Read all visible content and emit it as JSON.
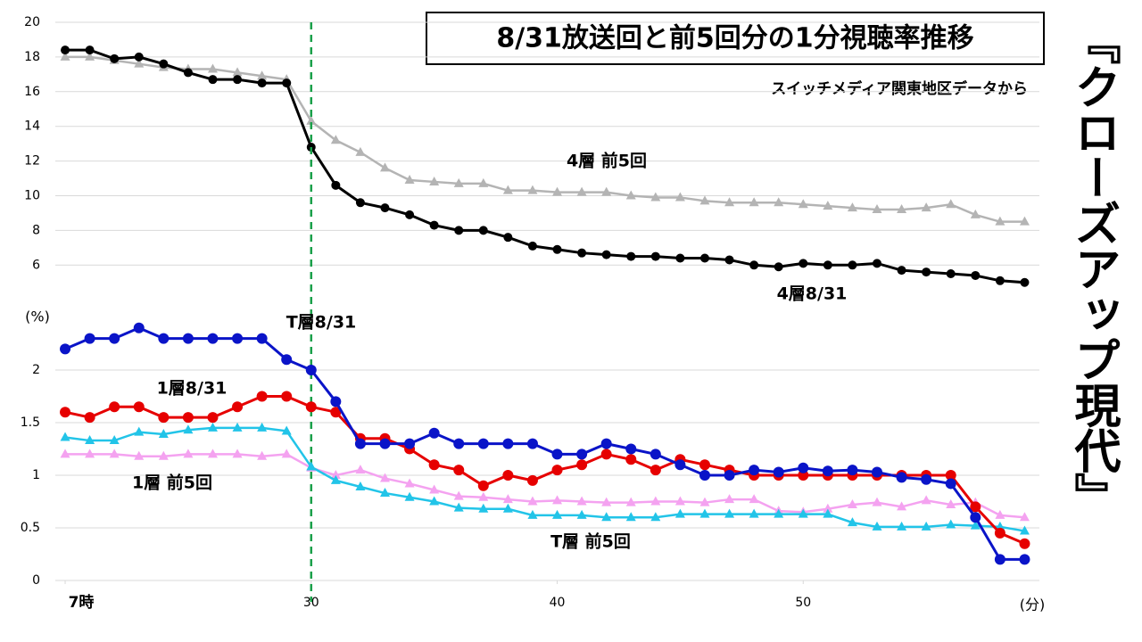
{
  "title": "8/31放送回と前5回分の1分視聴率推移",
  "subtitle": "スイッチメディア関東地区データから",
  "brand": "『クローズアップ現代』",
  "chart_data": [
    {
      "type": "line",
      "x": [
        20,
        21,
        22,
        23,
        24,
        25,
        26,
        27,
        28,
        29,
        30,
        31,
        32,
        33,
        34,
        35,
        36,
        37,
        38,
        39,
        40,
        41,
        42,
        43,
        44,
        45,
        46,
        47,
        48,
        49,
        50,
        51,
        52,
        53,
        54,
        55,
        56,
        57,
        58,
        59
      ],
      "xlim": [
        19.6,
        59.6
      ],
      "ylim": [
        5,
        20
      ],
      "yticks": [
        6,
        8,
        10,
        12,
        14,
        16,
        18,
        20
      ],
      "grid": true,
      "series": [
        {
          "name": "4層 前5回",
          "color": "#b4b4b4",
          "marker": "triangle",
          "values": [
            18.0,
            18.0,
            17.8,
            17.6,
            17.4,
            17.3,
            17.3,
            17.1,
            16.9,
            16.7,
            14.3,
            13.2,
            12.5,
            11.6,
            10.9,
            10.8,
            10.7,
            10.7,
            10.3,
            10.3,
            10.2,
            10.2,
            10.2,
            10.0,
            9.9,
            9.9,
            9.7,
            9.6,
            9.6,
            9.6,
            9.5,
            9.4,
            9.3,
            9.2,
            9.2,
            9.3,
            9.5,
            8.9,
            8.5,
            8.5
          ]
        },
        {
          "name": "4層8/31",
          "color": "#000000",
          "marker": "circle",
          "values": [
            18.4,
            18.4,
            17.9,
            18.0,
            17.6,
            17.1,
            16.7,
            16.7,
            16.5,
            16.5,
            12.8,
            10.6,
            9.6,
            9.3,
            8.9,
            8.3,
            8.0,
            8.0,
            7.6,
            7.1,
            6.9,
            6.7,
            6.6,
            6.5,
            6.5,
            6.4,
            6.4,
            6.3,
            6.0,
            5.9,
            6.1,
            6.0,
            6.0,
            6.1,
            5.7,
            5.6,
            5.5,
            5.4,
            5.1,
            5.0
          ]
        }
      ]
    },
    {
      "type": "line",
      "x": [
        20,
        21,
        22,
        23,
        24,
        25,
        26,
        27,
        28,
        29,
        30,
        31,
        32,
        33,
        34,
        35,
        36,
        37,
        38,
        39,
        40,
        41,
        42,
        43,
        44,
        45,
        46,
        47,
        48,
        49,
        50,
        51,
        52,
        53,
        54,
        55,
        56,
        57,
        58,
        59
      ],
      "xlim": [
        19.6,
        59.6
      ],
      "xticks": [
        {
          "value": 20,
          "label": "7時"
        },
        30,
        40,
        50
      ],
      "x_label": "(分)",
      "ylim": [
        0,
        2.5
      ],
      "yticks": [
        0,
        0.5,
        1,
        1.5,
        2
      ],
      "y_label": "(%)",
      "grid": true,
      "reference_x": 30,
      "series": [
        {
          "name": "1層 前5回",
          "color": "#f4a2f0",
          "marker": "triangle",
          "values": [
            1.2,
            1.2,
            1.2,
            1.18,
            1.18,
            1.2,
            1.2,
            1.2,
            1.18,
            1.2,
            1.07,
            1.0,
            1.05,
            0.97,
            0.92,
            0.86,
            0.8,
            0.79,
            0.77,
            0.75,
            0.76,
            0.75,
            0.74,
            0.74,
            0.75,
            0.75,
            0.74,
            0.77,
            0.77,
            0.66,
            0.65,
            0.68,
            0.72,
            0.74,
            0.7,
            0.76,
            0.72,
            0.74,
            0.62,
            0.6
          ]
        },
        {
          "name": "T層 前5回",
          "color": "#22c4e8",
          "marker": "triangle",
          "values": [
            1.36,
            1.33,
            1.33,
            1.41,
            1.39,
            1.43,
            1.45,
            1.45,
            1.45,
            1.42,
            1.08,
            0.95,
            0.89,
            0.83,
            0.79,
            0.75,
            0.69,
            0.68,
            0.68,
            0.62,
            0.62,
            0.62,
            0.6,
            0.6,
            0.6,
            0.63,
            0.63,
            0.63,
            0.63,
            0.63,
            0.63,
            0.63,
            0.55,
            0.51,
            0.51,
            0.51,
            0.53,
            0.52,
            0.51,
            0.47
          ]
        },
        {
          "name": "1層8/31",
          "color": "#e60000",
          "marker": "circle",
          "values": [
            1.6,
            1.55,
            1.65,
            1.65,
            1.55,
            1.55,
            1.55,
            1.65,
            1.75,
            1.75,
            1.65,
            1.6,
            1.35,
            1.35,
            1.25,
            1.1,
            1.05,
            0.9,
            1.0,
            0.95,
            1.05,
            1.1,
            1.2,
            1.15,
            1.05,
            1.15,
            1.1,
            1.05,
            1.0,
            1.0,
            1.0,
            1.0,
            1.0,
            1.0,
            1.0,
            1.0,
            1.0,
            0.7,
            0.45,
            0.35
          ]
        },
        {
          "name": "T層8/31",
          "color": "#0a14c8",
          "marker": "circle",
          "values": [
            2.2,
            2.3,
            2.3,
            2.4,
            2.3,
            2.3,
            2.3,
            2.3,
            2.3,
            2.1,
            2.0,
            1.7,
            1.3,
            1.3,
            1.3,
            1.4,
            1.3,
            1.3,
            1.3,
            1.3,
            1.2,
            1.2,
            1.3,
            1.25,
            1.2,
            1.1,
            1.0,
            1.0,
            1.05,
            1.03,
            1.07,
            1.04,
            1.05,
            1.03,
            0.98,
            0.96,
            0.92,
            0.6,
            0.2,
            0.2
          ]
        }
      ]
    }
  ]
}
